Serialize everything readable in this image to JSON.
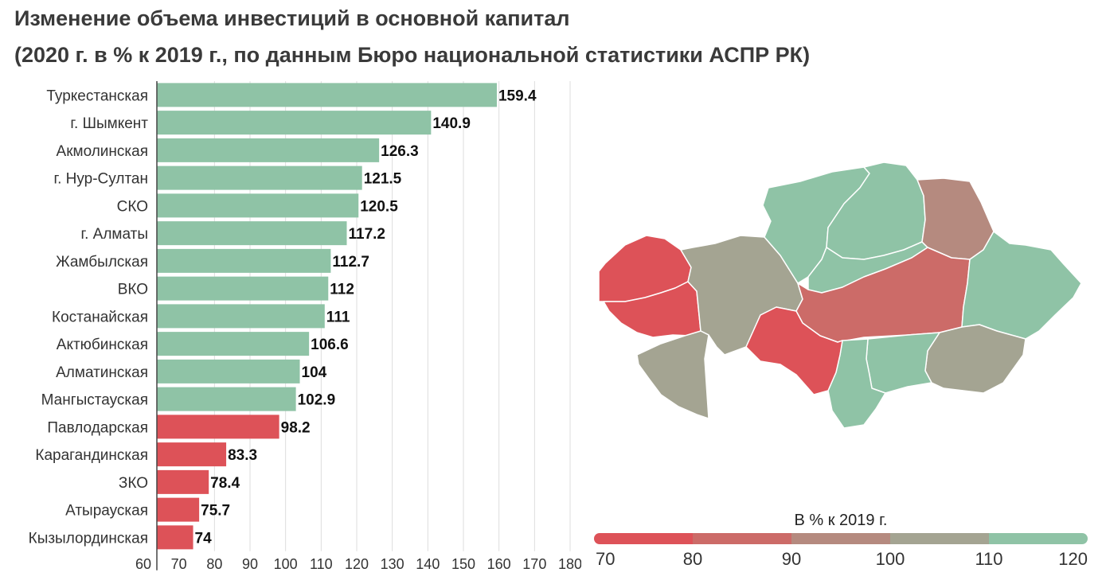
{
  "title": "Изменение объема инвестиций в основной капитал",
  "subtitle": "(2020 г. в % к 2019 г., по данным Бюро национальной статистики АСПР РК)",
  "chart_data": {
    "type": "bar",
    "orientation": "horizontal",
    "categories": [
      "Туркестанская",
      "г. Шымкент",
      "Акмолинская",
      "г. Нур-Султан",
      "СКО",
      "г. Алматы",
      "Жамбылская",
      "ВКО",
      "Костанайская",
      "Актюбинская",
      "Алматинская",
      "Мангыстауская",
      "Павлодарская",
      "Карагандинская",
      "ЗКО",
      "Атырауская",
      "Кызылординская"
    ],
    "values": [
      159.4,
      140.9,
      126.3,
      121.5,
      120.5,
      117.2,
      112.7,
      112,
      111,
      106.6,
      104,
      102.9,
      98.2,
      83.3,
      78.4,
      75.7,
      74
    ],
    "value_labels": [
      "159.4",
      "140.9",
      "126.3",
      "121.5",
      "120.5",
      "117.2",
      "112.7",
      "112",
      "111",
      "106.6",
      "104",
      "102.9",
      "98.2",
      "83.3",
      "78.4",
      "75.7",
      "74"
    ],
    "xlim": [
      60,
      180
    ],
    "xticks": [
      "60",
      "70",
      "80",
      "90",
      "100",
      "110",
      "120",
      "130",
      "140",
      "150",
      "160",
      "170",
      "180"
    ],
    "grid": true,
    "threshold": 100,
    "colors": {
      "above": "#8fc3a6",
      "below": "#dd5258"
    }
  },
  "map_legend": {
    "title": "В % к 2019 г.",
    "ticks": [
      "70",
      "80",
      "90",
      "100",
      "110",
      "120"
    ],
    "colors": [
      "#dd5258",
      "#cc6b68",
      "#b58a7f",
      "#a4a492",
      "#8fc3a6"
    ]
  }
}
